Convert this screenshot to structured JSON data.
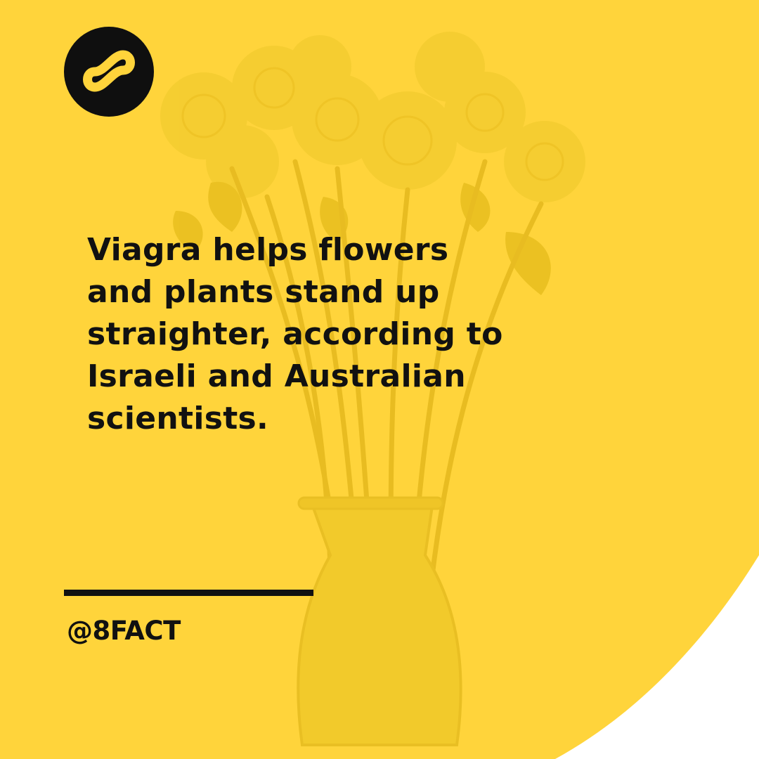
{
  "colors": {
    "background": "#ffffff",
    "accent_yellow": "#ffd43b",
    "photo_tint": "#e6bd17",
    "text": "#111111",
    "logo_circle": "#0f0f0f"
  },
  "logo": {
    "icon": "infinity-8-icon"
  },
  "fact": {
    "lines": [
      "Viagra helps flowers",
      "and plants stand up",
      "straighter, according to",
      "Israeli and Australian",
      "scientists."
    ]
  },
  "footer": {
    "handle": "@8FACT"
  }
}
